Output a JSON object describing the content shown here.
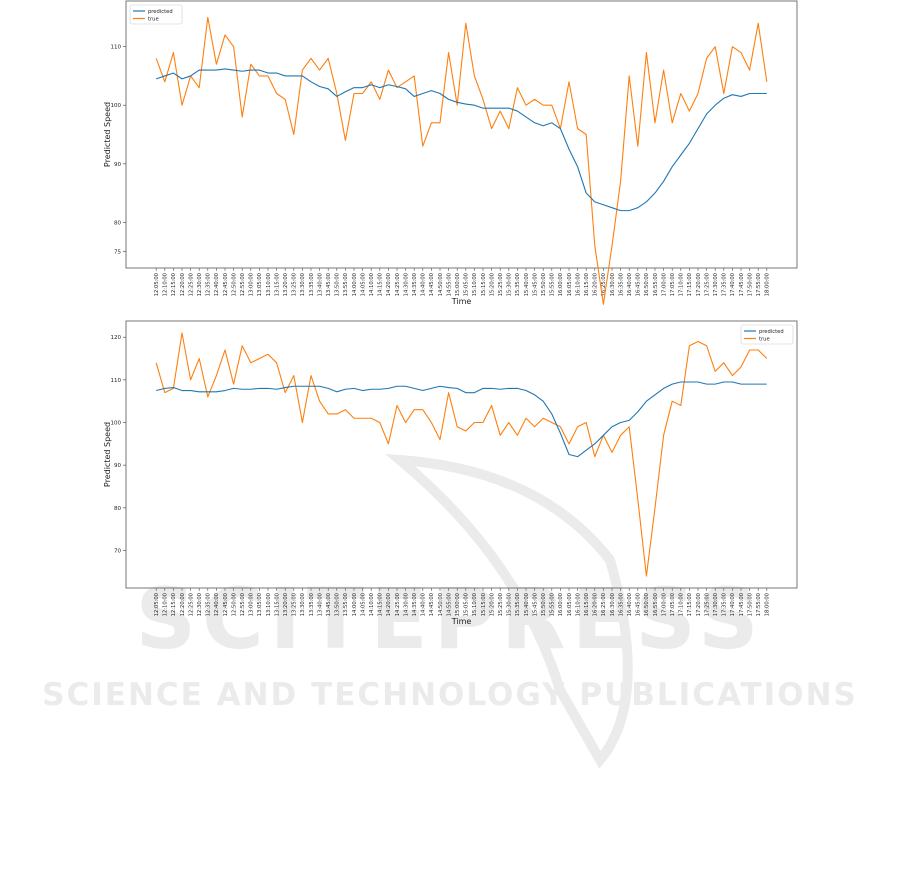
{
  "watermark": {
    "line1": "SCITEPRESS",
    "line2": "SCIENCE AND TECHNOLOGY PUBLICATIONS",
    "color": "#ebebeb"
  },
  "colors": {
    "predicted": "#1f77b4",
    "true": "#ff7f0e"
  },
  "chart_data": [
    {
      "type": "line",
      "xlabel": "Time",
      "ylabel": "Predicted Speed",
      "ylim": [
        72.2,
        117.8
      ],
      "yticks": [
        80,
        90,
        100,
        110
      ],
      "yticks_extra": [
        75
      ],
      "legend": "top-left",
      "x": [
        "12:05:00",
        "12:10:00",
        "12:15:00",
        "12:20:00",
        "12:25:00",
        "12:30:00",
        "12:35:00",
        "12:40:00",
        "12:45:00",
        "12:50:00",
        "12:55:00",
        "13:00:00",
        "13:05:00",
        "13:10:00",
        "13:15:00",
        "13:20:00",
        "13:25:00",
        "13:30:00",
        "13:35:00",
        "13:40:00",
        "13:45:00",
        "13:50:00",
        "13:55:00",
        "14:00:00",
        "14:05:00",
        "14:10:00",
        "14:15:00",
        "14:20:00",
        "14:25:00",
        "14:30:00",
        "14:35:00",
        "14:40:00",
        "14:45:00",
        "14:50:00",
        "14:55:00",
        "15:00:00",
        "15:05:00",
        "15:10:00",
        "15:15:00",
        "15:20:00",
        "15:25:00",
        "15:30:00",
        "15:35:00",
        "15:40:00",
        "15:45:00",
        "15:50:00",
        "15:55:00",
        "16:00:00",
        "16:05:00",
        "16:10:00",
        "16:15:00",
        "16:20:00",
        "16:25:00",
        "16:30:00",
        "16:35:00",
        "16:40:00",
        "16:45:00",
        "16:50:00",
        "16:55:00",
        "17:00:00",
        "17:05:00",
        "17:10:00",
        "17:15:00",
        "17:20:00",
        "17:25:00",
        "17:30:00",
        "17:35:00",
        "17:40:00",
        "17:45:00",
        "17:50:00",
        "17:55:00",
        "18:00:00"
      ],
      "series": [
        {
          "name": "predicted",
          "values": [
            104.5,
            105,
            105.5,
            104.5,
            105,
            106,
            106,
            106,
            106.2,
            106,
            105.8,
            106,
            106,
            105.5,
            105.5,
            105,
            105,
            105,
            104,
            103.2,
            102.8,
            101.5,
            102.3,
            103,
            103,
            103.5,
            103,
            103.5,
            103.2,
            102.8,
            101.5,
            102,
            102.5,
            102,
            101,
            100.5,
            100.2,
            100,
            99.5,
            99.5,
            99.5,
            99.5,
            99,
            98,
            97,
            96.5,
            97,
            96,
            92.5,
            89.5,
            85,
            83.5,
            83,
            82.5,
            82,
            82,
            82.5,
            83.5,
            85,
            87,
            89.5,
            91.5,
            93.5,
            96,
            98.5,
            100,
            101.2,
            101.8,
            101.5,
            102,
            102,
            102
          ]
        },
        {
          "name": "true",
          "values": [
            108,
            104,
            109,
            100,
            105,
            103,
            115,
            107,
            112,
            110,
            98,
            107,
            105,
            105,
            102,
            101,
            95,
            106,
            108,
            106,
            108,
            102,
            94,
            102,
            102,
            104,
            101,
            106,
            103,
            104,
            105,
            93,
            97,
            97,
            109,
            100,
            114,
            105,
            101,
            96,
            99,
            96,
            103,
            100,
            101,
            100,
            100,
            96,
            104,
            96,
            95,
            76,
            66,
            76,
            87,
            105,
            93,
            109,
            97,
            106,
            97,
            102,
            99,
            102,
            108,
            110,
            102,
            110,
            109,
            106,
            114,
            104
          ]
        }
      ]
    },
    {
      "type": "line",
      "xlabel": "Time",
      "ylabel": "Predicted Speed",
      "ylim": [
        61.2,
        123.8
      ],
      "yticks": [
        70,
        80,
        90,
        100,
        110,
        120
      ],
      "legend": "top-right",
      "x": [
        "12:05:00",
        "12:10:00",
        "12:15:00",
        "12:20:00",
        "12:25:00",
        "12:30:00",
        "12:35:00",
        "12:40:00",
        "12:45:00",
        "12:50:00",
        "12:55:00",
        "13:00:00",
        "13:05:00",
        "13:10:00",
        "13:15:00",
        "13:20:00",
        "13:25:00",
        "13:30:00",
        "13:35:00",
        "13:40:00",
        "13:45:00",
        "13:50:00",
        "13:55:00",
        "14:00:00",
        "14:05:00",
        "14:10:00",
        "14:15:00",
        "14:20:00",
        "14:25:00",
        "14:30:00",
        "14:35:00",
        "14:40:00",
        "14:45:00",
        "14:50:00",
        "14:55:00",
        "15:00:00",
        "15:05:00",
        "15:10:00",
        "15:15:00",
        "15:20:00",
        "15:25:00",
        "15:30:00",
        "15:35:00",
        "15:40:00",
        "15:45:00",
        "15:50:00",
        "15:55:00",
        "16:00:00",
        "16:05:00",
        "16:10:00",
        "16:15:00",
        "16:20:00",
        "16:25:00",
        "16:30:00",
        "16:35:00",
        "16:40:00",
        "16:45:00",
        "16:50:00",
        "16:55:00",
        "17:00:00",
        "17:05:00",
        "17:10:00",
        "17:15:00",
        "17:20:00",
        "17:25:00",
        "17:30:00",
        "17:35:00",
        "17:40:00",
        "17:45:00",
        "17:50:00",
        "17:55:00",
        "18:00:00"
      ],
      "series": [
        {
          "name": "predicted",
          "values": [
            107.5,
            108,
            108.2,
            107.5,
            107.5,
            107.2,
            107.2,
            107.2,
            107.5,
            108,
            107.8,
            107.8,
            108,
            108,
            107.8,
            108.2,
            108.5,
            108.5,
            108.5,
            108.5,
            108,
            107.2,
            107.8,
            108,
            107.5,
            107.8,
            107.8,
            108,
            108.5,
            108.5,
            108,
            107.5,
            108,
            108.5,
            108.2,
            108,
            107,
            107,
            108,
            108,
            107.8,
            108,
            108,
            107.5,
            106.5,
            105,
            102,
            97.5,
            92.5,
            92,
            93.5,
            95,
            97,
            99,
            100,
            100.5,
            102.5,
            105,
            106.5,
            108,
            109,
            109.5,
            109.5,
            109.5,
            109,
            109,
            109.5,
            109.5,
            109,
            109,
            109,
            109
          ]
        },
        {
          "name": "true",
          "values": [
            114,
            107,
            108,
            121,
            110,
            115,
            106,
            111,
            117,
            109,
            118,
            114,
            115,
            116,
            114,
            107,
            111,
            100,
            111,
            105,
            102,
            102,
            103,
            101,
            101,
            101,
            100,
            95,
            104,
            100,
            103,
            103,
            100,
            96,
            107,
            99,
            98,
            100,
            100,
            104,
            97,
            100,
            97,
            101,
            99,
            101,
            100,
            99,
            95,
            99,
            100,
            92,
            97,
            93,
            97,
            99,
            82,
            64,
            80,
            97,
            105,
            104,
            118,
            119,
            118,
            112,
            114,
            111,
            113,
            117,
            117,
            115
          ]
        }
      ]
    }
  ]
}
